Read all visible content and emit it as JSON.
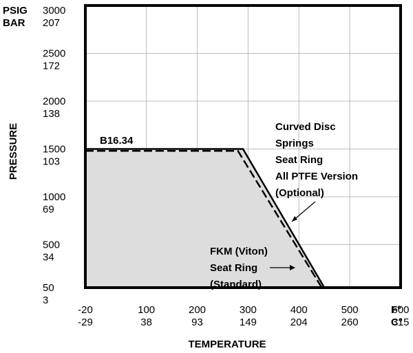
{
  "chart_data": {
    "type": "area",
    "title": "",
    "xlabel": "TEMPERATURE",
    "ylabel": "PRESSURE",
    "units": {
      "y_primary": "PSIG",
      "y_secondary": "BAR",
      "x_primary": "F°",
      "x_secondary": "C°"
    },
    "xlim": [
      -20,
      600
    ],
    "ylim": [
      50,
      3000
    ],
    "y_ticks": [
      {
        "psig": "3000",
        "bar": "207",
        "value": 3000
      },
      {
        "psig": "2500",
        "bar": "172",
        "value": 2500
      },
      {
        "psig": "2000",
        "bar": "138",
        "value": 2000
      },
      {
        "psig": "1500",
        "bar": "103",
        "value": 1500
      },
      {
        "psig": "1000",
        "bar": "69",
        "value": 1000
      },
      {
        "psig": "500",
        "bar": "34",
        "value": 500
      },
      {
        "psig": "50",
        "bar": "3",
        "value": 50
      }
    ],
    "x_ticks": [
      {
        "f": "-20",
        "c": "-29",
        "value": -20
      },
      {
        "f": "100",
        "c": "38",
        "value": 100
      },
      {
        "f": "200",
        "c": "93",
        "value": 200
      },
      {
        "f": "300",
        "c": "149",
        "value": 300
      },
      {
        "f": "400",
        "c": "204",
        "value": 400
      },
      {
        "f": "500",
        "c": "260",
        "value": 500
      },
      {
        "f": "600",
        "c": "315",
        "value": 600
      }
    ],
    "grid": true,
    "series": [
      {
        "name": "Curved Disc Springs Seat Ring All PTFE Version (Optional)",
        "style": "solid",
        "x": [
          -20,
          290,
          450
        ],
        "y": [
          1500,
          1500,
          50
        ]
      },
      {
        "name": "FKM (Viton) Seat Ring (Standard)",
        "style": "dashed",
        "x": [
          -20,
          280,
          445
        ],
        "y": [
          1480,
          1480,
          50
        ]
      }
    ],
    "annotations": {
      "b1634": "B16.34",
      "ptfe": [
        "Curved Disc",
        "Springs",
        "Seat Ring",
        "All PTFE Version",
        "(Optional)"
      ],
      "fkm": [
        "FKM (Viton)",
        "Seat Ring",
        "(Standard)"
      ]
    },
    "colors": {
      "fill": "#dddddd",
      "line": "#000000",
      "frame": "#000000",
      "grid": "#bbbbbb"
    }
  }
}
